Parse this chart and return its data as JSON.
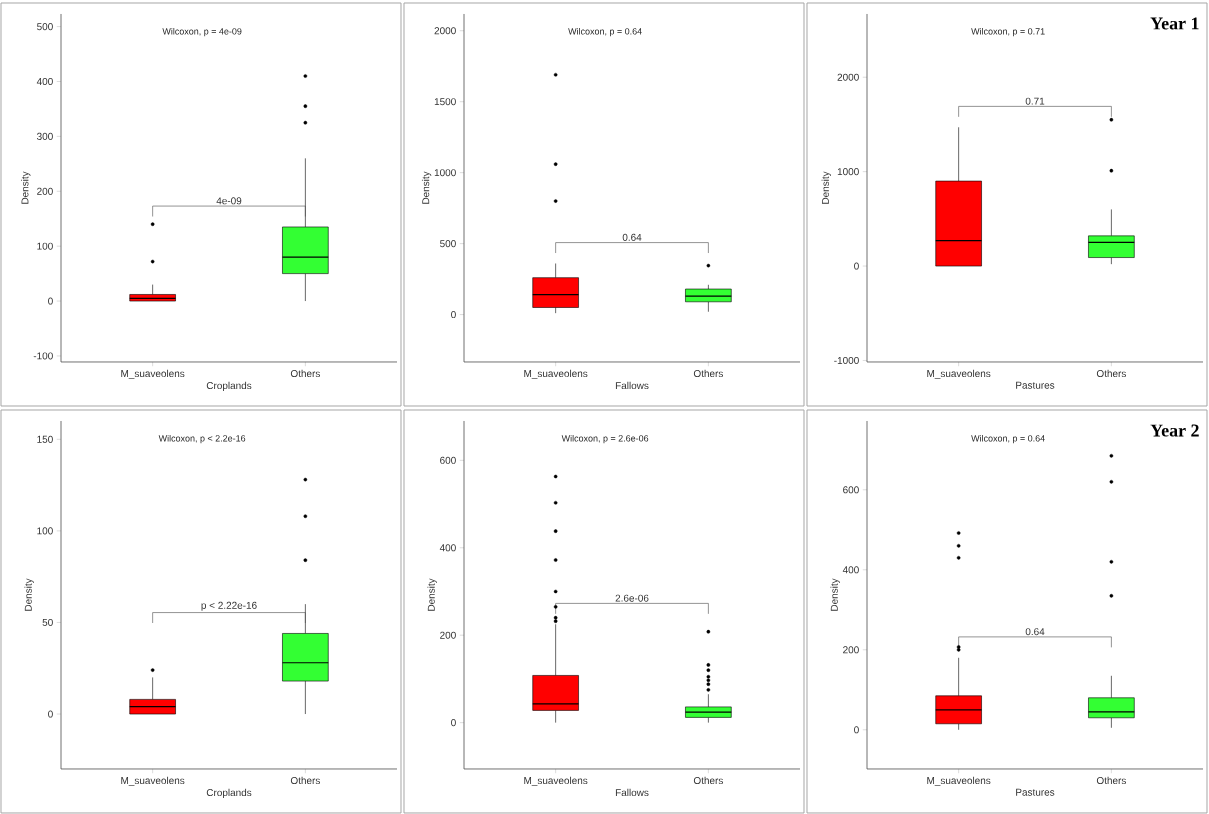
{
  "chart_data": [
    {
      "type": "box",
      "categories": [
        "M_suaveolens",
        "Others"
      ],
      "xlabel": "Croplands",
      "ylabel": "Density",
      "colors": [
        "#ff0000",
        "#33ff33"
      ],
      "ylim": [
        -111,
        523
      ],
      "yticks": [
        -100,
        0,
        100,
        200,
        300,
        400,
        500
      ],
      "boxes": [
        {
          "low": 0,
          "q1": 0,
          "median": 5,
          "q3": 12,
          "high": 30,
          "outliers": [
            72,
            140
          ]
        },
        {
          "low": 0,
          "q1": 50,
          "median": 80,
          "q3": 135,
          "high": 260,
          "outliers": [
            325,
            355,
            410
          ]
        }
      ],
      "annotations": [
        "Wilcoxon, p = 4e-09",
        "4e-09"
      ]
    },
    {
      "type": "box",
      "categories": [
        "M_suaveolens",
        "Others"
      ],
      "xlabel": "Fallows",
      "ylabel": "Density",
      "colors": [
        "#ff0000",
        "#33ff33"
      ],
      "ylim": [
        -334,
        2118
      ],
      "yticks": [
        0,
        500,
        1000,
        1500,
        2000
      ],
      "boxes": [
        {
          "low": 10,
          "q1": 50,
          "median": 140,
          "q3": 260,
          "high": 360,
          "outliers": [
            800,
            1060,
            1690
          ]
        },
        {
          "low": 20,
          "q1": 90,
          "median": 130,
          "q3": 180,
          "high": 210,
          "outliers": [
            345
          ]
        }
      ],
      "annotations": [
        "Wilcoxon, p = 0.64",
        "0.64"
      ]
    },
    {
      "type": "box",
      "title": "Year 1",
      "categories": [
        "M_suaveolens",
        "Others"
      ],
      "xlabel": "Pastures",
      "ylabel": "Density",
      "colors": [
        "#ff0000",
        "#33ff33"
      ],
      "ylim": [
        -1016,
        2670
      ],
      "yticks": [
        -1000,
        0,
        1000,
        2000
      ],
      "boxes": [
        {
          "low": 0,
          "q1": 0,
          "median": 270,
          "q3": 900,
          "high": 1470
        },
        {
          "low": 20,
          "q1": 90,
          "median": 250,
          "q3": 320,
          "high": 600,
          "outliers": [
            1010,
            1550
          ]
        }
      ],
      "annotations": [
        "Wilcoxon, p = 0.71",
        "0.71"
      ]
    },
    {
      "type": "box",
      "categories": [
        "M_suaveolens",
        "Others"
      ],
      "xlabel": "Croplands",
      "ylabel": "Density",
      "colors": [
        "#ff0000",
        "#33ff33"
      ],
      "ylim": [
        -30,
        160
      ],
      "yticks": [
        0,
        50,
        100,
        150
      ],
      "boxes": [
        {
          "low": 0,
          "q1": 0,
          "median": 4,
          "q3": 8,
          "high": 20,
          "outliers": [
            24
          ]
        },
        {
          "low": 0,
          "q1": 18,
          "median": 28,
          "q3": 44,
          "high": 60,
          "outliers": [
            84,
            108,
            128
          ]
        }
      ],
      "annotations": [
        "Wilcoxon, p < 2.2e-16",
        "p < 2.22e-16"
      ]
    },
    {
      "type": "box",
      "categories": [
        "M_suaveolens",
        "Others"
      ],
      "xlabel": "Fallows",
      "ylabel": "Density",
      "colors": [
        "#ff0000",
        "#33ff33"
      ],
      "ylim": [
        -106,
        690
      ],
      "yticks": [
        0,
        200,
        400,
        600
      ],
      "boxes": [
        {
          "low": 0,
          "q1": 28,
          "median": 43,
          "q3": 108,
          "high": 225,
          "outliers": [
            232,
            240,
            265,
            300,
            372,
            438,
            503,
            563
          ]
        },
        {
          "low": 0,
          "q1": 12,
          "median": 24,
          "q3": 36,
          "high": 65,
          "outliers": [
            75,
            88,
            97,
            105,
            120,
            132,
            208
          ]
        }
      ],
      "annotations": [
        "Wilcoxon, p = 2.6e-06",
        "2.6e-06"
      ]
    },
    {
      "type": "box",
      "title": "Year 2",
      "categories": [
        "M_suaveolens",
        "Others"
      ],
      "xlabel": "Pastures",
      "ylabel": "Density",
      "colors": [
        "#ff0000",
        "#33ff33"
      ],
      "ylim": [
        -98,
        772
      ],
      "yticks": [
        0,
        200,
        400,
        600
      ],
      "boxes": [
        {
          "low": 0,
          "q1": 15,
          "median": 50,
          "q3": 85,
          "high": 180,
          "outliers": [
            200,
            207,
            430,
            460,
            492
          ]
        },
        {
          "low": 5,
          "q1": 30,
          "median": 45,
          "q3": 80,
          "high": 135,
          "outliers": [
            335,
            420,
            620,
            685
          ]
        }
      ],
      "annotations": [
        "Wilcoxon, p = 0.64",
        "0.64"
      ]
    }
  ]
}
